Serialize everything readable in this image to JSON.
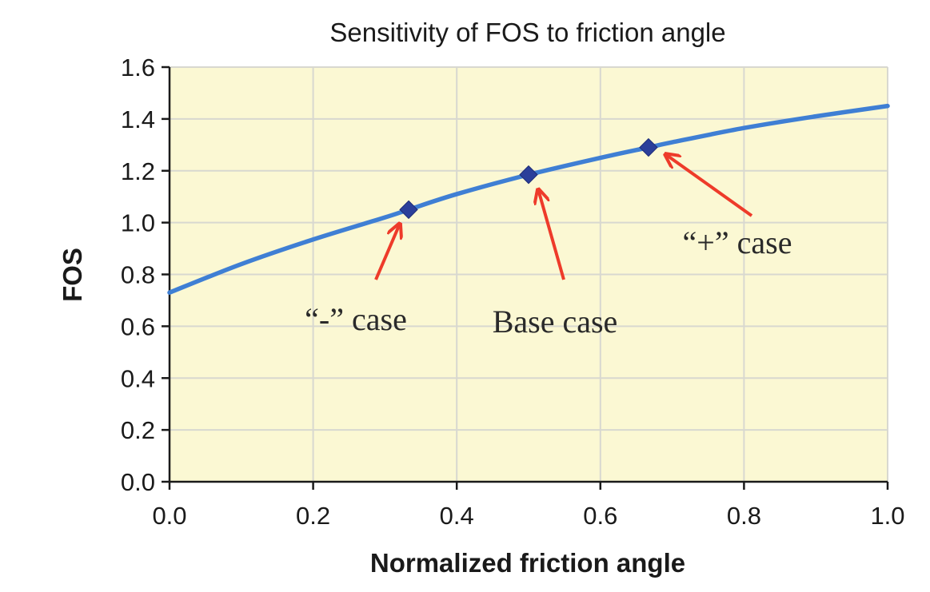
{
  "chart_data": {
    "type": "line",
    "title": "Sensitivity of FOS to friction angle",
    "xlabel": "Normalized friction angle",
    "ylabel": "FOS",
    "xlim": [
      0,
      1.0
    ],
    "ylim": [
      0,
      1.6
    ],
    "x_ticks": [
      "0.0",
      "0.2",
      "0.4",
      "0.6",
      "0.8",
      "1.0"
    ],
    "y_ticks": [
      "0.0",
      "0.2",
      "0.4",
      "0.6",
      "0.8",
      "1.0",
      "1.2",
      "1.4",
      "1.6"
    ],
    "grid": true,
    "series": [
      {
        "x": [
          0.0,
          0.1,
          0.2,
          0.3,
          0.333,
          0.4,
          0.5,
          0.6,
          0.667,
          0.7,
          0.8,
          0.9,
          1.0
        ],
        "y": [
          0.73,
          0.84,
          0.935,
          1.02,
          1.05,
          1.11,
          1.185,
          1.25,
          1.29,
          1.31,
          1.365,
          1.41,
          1.45
        ]
      }
    ],
    "markers": [
      {
        "x": 0.333,
        "y": 1.05
      },
      {
        "x": 0.5,
        "y": 1.185
      },
      {
        "x": 0.667,
        "y": 1.29
      }
    ],
    "annotations": [
      {
        "text": "“-” case",
        "target_x": 0.333,
        "target_y": 1.05
      },
      {
        "text": "Base case",
        "target_x": 0.5,
        "target_y": 1.185
      },
      {
        "text": "“+” case",
        "target_x": 0.667,
        "target_y": 1.29
      }
    ],
    "colors": {
      "plot_background": "#fbf8d3",
      "grid": "#d8d8d0",
      "line": "#3f7fd4",
      "marker": "#2b3f9a",
      "arrow": "#ee3b2a"
    }
  }
}
